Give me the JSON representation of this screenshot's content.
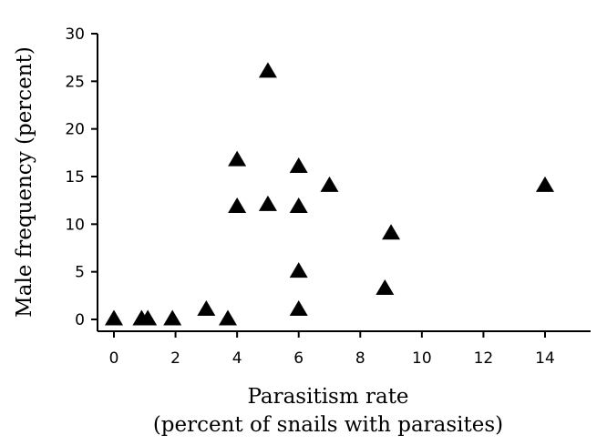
{
  "chart_data": {
    "type": "scatter",
    "xlabel": "Parasitism rate",
    "xlabel_line2": "(percent of snails with parasites)",
    "ylabel": "Male frequency (percent)",
    "xlim": [
      -0.5,
      15.5
    ],
    "ylim": [
      -1,
      30
    ],
    "xticks": [
      0,
      2,
      4,
      6,
      8,
      10,
      12,
      14
    ],
    "yticks": [
      0,
      5,
      10,
      15,
      20,
      25,
      30
    ],
    "xtick_labels": [
      "0",
      "2",
      "4",
      "6",
      "8",
      "10",
      "12",
      "14"
    ],
    "ytick_labels": [
      "0",
      "5",
      "10",
      "15",
      "20",
      "25",
      "30"
    ],
    "grid": false,
    "legend": "none",
    "marker": "triangle",
    "marker_color": "#000000",
    "points": [
      {
        "x": 0,
        "y": 0
      },
      {
        "x": 0.9,
        "y": 0
      },
      {
        "x": 1.1,
        "y": 0
      },
      {
        "x": 1.9,
        "y": 0
      },
      {
        "x": 3,
        "y": 1
      },
      {
        "x": 3.7,
        "y": 0
      },
      {
        "x": 4,
        "y": 16.7
      },
      {
        "x": 4,
        "y": 11.8
      },
      {
        "x": 5,
        "y": 26
      },
      {
        "x": 5,
        "y": 12
      },
      {
        "x": 6,
        "y": 16
      },
      {
        "x": 6,
        "y": 11.8
      },
      {
        "x": 6,
        "y": 5
      },
      {
        "x": 6,
        "y": 1
      },
      {
        "x": 7,
        "y": 14
      },
      {
        "x": 8.8,
        "y": 3.2
      },
      {
        "x": 9,
        "y": 9
      },
      {
        "x": 14,
        "y": 14
      }
    ]
  }
}
